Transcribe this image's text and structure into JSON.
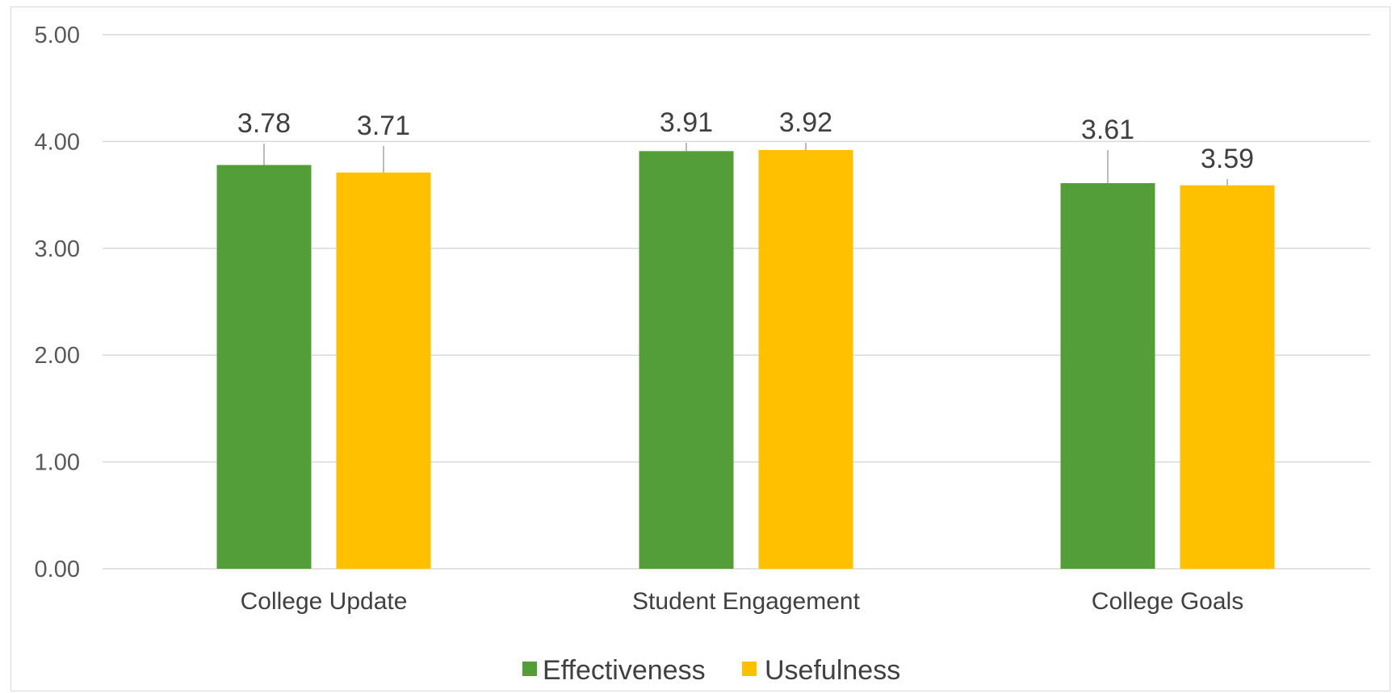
{
  "chart_data": {
    "type": "bar",
    "categories": [
      "College Update",
      "Student Engagement",
      "College Goals"
    ],
    "series": [
      {
        "name": "Effectiveness",
        "color": "#549e39",
        "values": [
          3.78,
          3.91,
          3.61
        ],
        "labels": [
          "3.78",
          "3.91",
          "3.61"
        ]
      },
      {
        "name": "Usefulness",
        "color": "#ffc000",
        "values": [
          3.71,
          3.92,
          3.59
        ],
        "labels": [
          "3.71",
          "3.92",
          "3.59"
        ]
      }
    ],
    "yticks": [
      "0.00",
      "1.00",
      "2.00",
      "3.00",
      "4.00",
      "5.00"
    ],
    "ylim": [
      0,
      5
    ],
    "grid": true,
    "legend_position": "bottom",
    "gridline_color": "#d9d9d9"
  }
}
